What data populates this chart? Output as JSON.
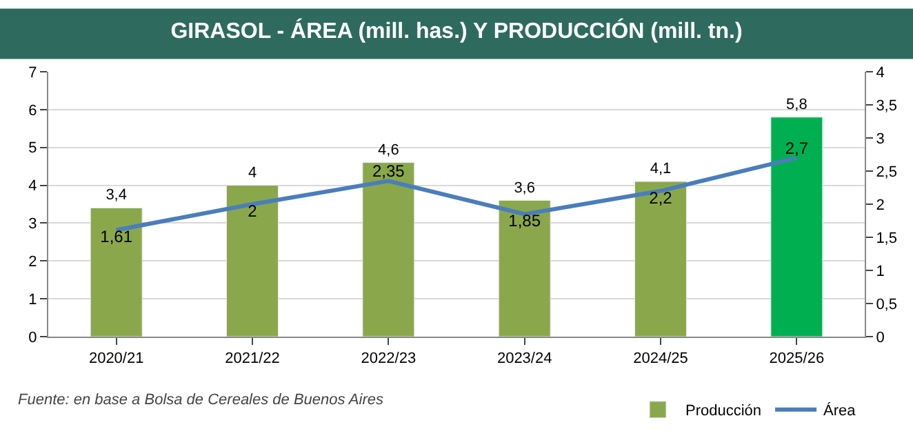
{
  "chart_data": {
    "type": "bar",
    "title": "GIRASOL - ÁREA (mill. has.) Y PRODUCCIÓN (mill. tn.)",
    "categories": [
      "2020/21",
      "2021/22",
      "2022/23",
      "2023/24",
      "2024/25",
      "2025/26"
    ],
    "series": [
      {
        "name": "Producción",
        "colors": [
          "#8aa84b",
          "#8aa84b",
          "#8aa84b",
          "#8aa84b",
          "#8aa84b",
          "#00b050"
        ],
        "values": [
          3.4,
          4,
          4.6,
          3.6,
          4.1,
          5.8
        ],
        "value_labels": [
          "3,4",
          "4",
          "4,6",
          "3,6",
          "4,1",
          "5,8"
        ]
      },
      {
        "name": "Área",
        "type": "line",
        "axis": "y2",
        "color": "#4a7ebb",
        "values": [
          1.61,
          2,
          2.35,
          1.85,
          2.2,
          2.7
        ],
        "value_labels": [
          "1,61",
          "2",
          "2,35",
          "1,85",
          "2,2",
          "2,7"
        ]
      }
    ],
    "ylim": [
      0,
      7
    ],
    "yticks": [
      0,
      1,
      2,
      3,
      4,
      5,
      6,
      7
    ],
    "y2lim": [
      0,
      4
    ],
    "y2ticks": [
      0,
      {
        "value": 0.5,
        "label": "0,5"
      },
      1,
      {
        "value": 1.5,
        "label": "1,5"
      },
      2,
      {
        "value": 2.5,
        "label": "2,5"
      },
      3,
      {
        "value": 3.5,
        "label": "3,5"
      },
      4
    ],
    "grid": "y",
    "legend": "bottom right",
    "marker": "none",
    "annotations": [
      "Fuente: en base a Bolsa de Cereales de Buenos Aires"
    ]
  }
}
